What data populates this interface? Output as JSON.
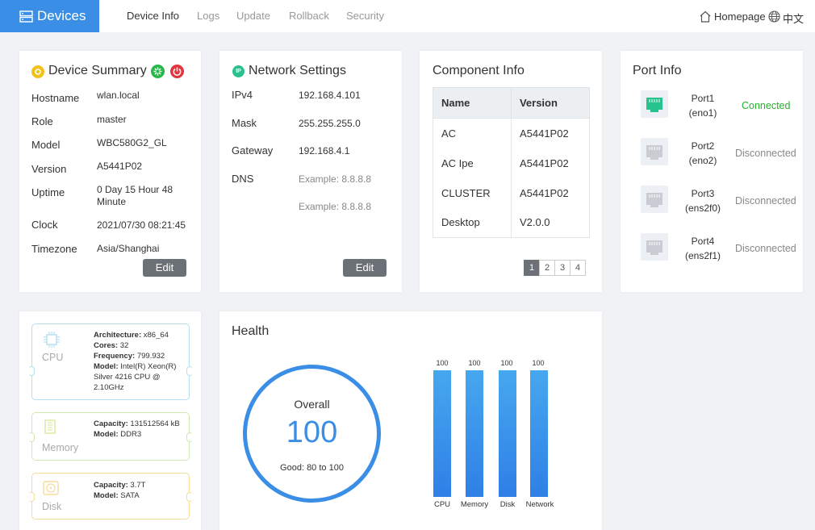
{
  "header": {
    "brand": "Devices",
    "tabs": [
      {
        "label": "Device Info",
        "active": true
      },
      {
        "label": "Logs",
        "active": false
      },
      {
        "label": "Update",
        "active": false
      },
      {
        "label": "Rollback",
        "active": false
      },
      {
        "label": "Security",
        "active": false
      }
    ],
    "homepage": "Homepage",
    "language": "中文"
  },
  "summary": {
    "title": "Device Summary",
    "rows": [
      {
        "label": "Hostname",
        "value": "wlan.local"
      },
      {
        "label": "Role",
        "value": "master"
      },
      {
        "label": "Model",
        "value": "WBC580G2_GL"
      },
      {
        "label": "Version",
        "value": "A5441P02"
      },
      {
        "label": "Uptime",
        "value": "0 Day 15 Hour 48",
        "value2": "Minute"
      },
      {
        "label": "Clock",
        "value": "2021/07/30 08:21:45"
      },
      {
        "label": "Timezone",
        "value": "Asia/Shanghai"
      }
    ],
    "edit": "Edit"
  },
  "network": {
    "title": "Network Settings",
    "ip_badge": "IP",
    "rows": [
      {
        "label": "IPv4",
        "value": "192.168.4.101"
      },
      {
        "label": "Mask",
        "value": "255.255.255.0"
      },
      {
        "label": "Gateway",
        "value": "192.168.4.1"
      },
      {
        "label": "DNS",
        "value": "Example: 8.8.8.8"
      }
    ],
    "dns2": "Example: 8.8.8.8",
    "edit": "Edit"
  },
  "components": {
    "title": "Component Info",
    "headers": [
      "Name",
      "Version"
    ],
    "rows": [
      [
        "AC",
        "A5441P02"
      ],
      [
        "AC Ipe",
        "A5441P02"
      ],
      [
        "CLUSTER",
        "A5441P02"
      ],
      [
        "Desktop",
        "V2.0.0"
      ]
    ],
    "pages": [
      "1",
      "2",
      "3",
      "4"
    ]
  },
  "ports": {
    "title": "Port Info",
    "items": [
      {
        "name": "Port1",
        "iface": "(eno1)",
        "status": "Connected",
        "color": "#25b12d"
      },
      {
        "name": "Port2",
        "iface": "(eno2)",
        "status": "Disconnected",
        "color": "#888888"
      },
      {
        "name": "Port3",
        "iface": "(ens2f0)",
        "status": "Disconnected",
        "color": "#888888"
      },
      {
        "name": "Port4",
        "iface": "(ens2f1)",
        "status": "Disconnected",
        "color": "#888888"
      }
    ]
  },
  "hardware": {
    "cpu": {
      "label": "CPU",
      "architecture_label": "Architecture:",
      "architecture": "x86_64",
      "cores_label": "Cores:",
      "cores": "32",
      "frequency_label": "Frequency:",
      "frequency": "799.932",
      "model_label": "Model:",
      "model": "Intel(R) Xeon(R) Silver 4216 CPU @ 2.10GHz"
    },
    "memory": {
      "label": "Memory",
      "capacity_label": "Capacity:",
      "capacity": "131512564 kB",
      "model_label": "Model:",
      "model": "DDR3"
    },
    "disk": {
      "label": "Disk",
      "capacity_label": "Capacity:",
      "capacity": "3.7T",
      "model_label": "Model:",
      "model": "SATA"
    }
  },
  "health": {
    "title": "Health",
    "overall_label": "Overall",
    "overall_value": "100",
    "range_text": "Good: 80 to 100",
    "bar_color": "#3b8ee6",
    "bars": [
      {
        "label": "CPU",
        "value": 100
      },
      {
        "label": "Memory",
        "value": 100
      },
      {
        "label": "Disk",
        "value": 100
      },
      {
        "label": "Network",
        "value": 100
      }
    ],
    "max": 100
  }
}
